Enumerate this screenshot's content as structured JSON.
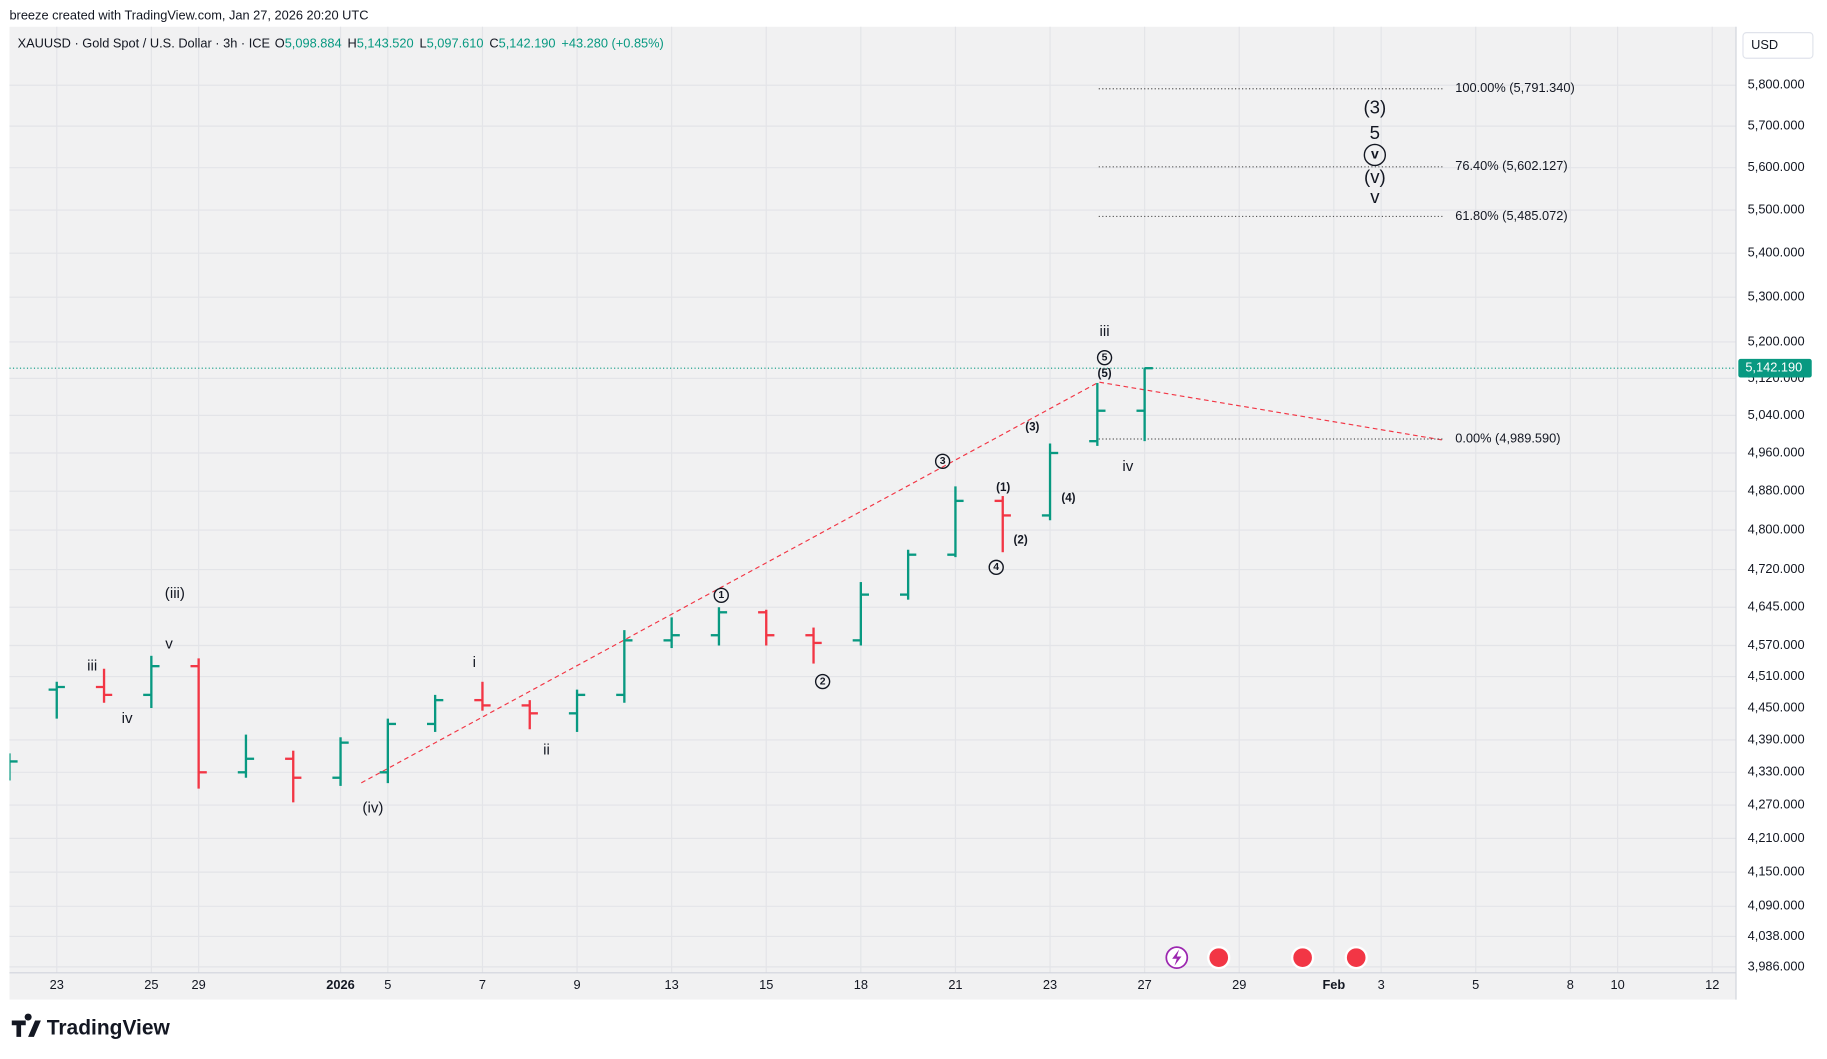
{
  "header": {
    "credit": "breeze created with TradingView.com, Jan 27, 2026 20:20 UTC",
    "brand": "TradingView"
  },
  "chart_data": {
    "type": "ohlc",
    "symbol": "XAUUSD · Gold Spot / U.S. Dollar · 3h · ICE",
    "ohlc_legend": [
      {
        "label": "O",
        "value": "5,098.884"
      },
      {
        "label": "H",
        "value": "5,143.520"
      },
      {
        "label": "L",
        "value": "5,097.610"
      },
      {
        "label": "C",
        "value": "5,142.190"
      }
    ],
    "change": "+43.280 (+0.85%)",
    "currency": "USD",
    "categories": [
      null,
      "23",
      null,
      "25",
      "29",
      null,
      null,
      "2026",
      "5",
      null,
      "7",
      null,
      "9",
      null,
      "13",
      null,
      "15",
      null,
      "18",
      null,
      "21",
      null,
      "23",
      null,
      "27",
      null,
      "29",
      null,
      "Feb",
      "3",
      null,
      "5",
      null,
      "8",
      "10",
      null,
      "12"
    ],
    "open": [
      4318,
      4485,
      4490,
      4475,
      4530,
      4330,
      4355,
      4320,
      4330,
      4420,
      4465,
      4455,
      4440,
      4475,
      4580,
      4590,
      4635,
      4590,
      4580,
      4670,
      4750,
      4860,
      4830,
      4985,
      5050,
      null,
      null,
      null,
      null,
      null,
      null,
      null,
      null,
      null,
      null,
      null,
      null
    ],
    "high": [
      4365,
      4500,
      4525,
      4550,
      4545,
      4400,
      4370,
      4395,
      4430,
      4475,
      4500,
      4465,
      4485,
      4600,
      4625,
      4645,
      4640,
      4605,
      4695,
      4760,
      4890,
      4870,
      4980,
      5110,
      5143.52,
      null,
      null,
      null,
      null,
      null,
      null,
      null,
      null,
      null,
      null,
      null,
      null
    ],
    "low": [
      4315,
      4430,
      4460,
      4450,
      4300,
      4320,
      4275,
      4305,
      4310,
      4405,
      4445,
      4410,
      4405,
      4460,
      4565,
      4570,
      4570,
      4535,
      4570,
      4660,
      4745,
      4755,
      4820,
      4975,
      4985,
      null,
      null,
      null,
      null,
      null,
      null,
      null,
      null,
      null,
      null,
      null,
      null
    ],
    "close": [
      4350,
      4490,
      4475,
      4530,
      4330,
      4355,
      4320,
      4385,
      4420,
      4465,
      4455,
      4440,
      4475,
      4580,
      4590,
      4635,
      4590,
      4575,
      4670,
      4750,
      4860,
      4830,
      4960,
      5050,
      5142.19,
      null,
      null,
      null,
      null,
      null,
      null,
      null,
      null,
      null,
      null,
      null,
      null
    ],
    "up_color": "#089981",
    "down_color": "#f23645",
    "log": true,
    "grid": true,
    "ylim": [
      3976,
      5946
    ],
    "yticks": [
      {
        "value": 3986,
        "label": "3,986.000"
      },
      {
        "value": 4038,
        "label": "4,038.000"
      },
      {
        "value": 4090,
        "label": "4,090.000"
      },
      {
        "value": 4150,
        "label": "4,150.000"
      },
      {
        "value": 4210,
        "label": "4,210.000"
      },
      {
        "value": 4270,
        "label": "4,270.000"
      },
      {
        "value": 4330,
        "label": "4,330.000"
      },
      {
        "value": 4390,
        "label": "4,390.000"
      },
      {
        "value": 4450,
        "label": "4,450.000"
      },
      {
        "value": 4510,
        "label": "4,510.000"
      },
      {
        "value": 4570,
        "label": "4,570.000"
      },
      {
        "value": 4645,
        "label": "4,645.000"
      },
      {
        "value": 4720,
        "label": "4,720.000"
      },
      {
        "value": 4800,
        "label": "4,800.000"
      },
      {
        "value": 4880,
        "label": "4,880.000"
      },
      {
        "value": 4960,
        "label": "4,960.000"
      },
      {
        "value": 5040,
        "label": "5,040.000"
      },
      {
        "value": 5120,
        "label": "5,120.000"
      },
      {
        "value": 5200,
        "label": "5,200.000"
      },
      {
        "value": 5300,
        "label": "5,300.000"
      },
      {
        "value": 5400,
        "label": "5,400.000"
      },
      {
        "value": 5500,
        "label": "5,500.000"
      },
      {
        "value": 5600,
        "label": "5,600.000"
      },
      {
        "value": 5700,
        "label": "5,700.000"
      },
      {
        "value": 5800,
        "label": "5,800.000"
      }
    ],
    "last_price": {
      "value": 5142.19,
      "label": "5,142.190"
    },
    "fib_levels": [
      {
        "value": 5791.34,
        "label": "100.00% (5,791.340)"
      },
      {
        "value": 5602.127,
        "label": "76.40% (5,602.127)"
      },
      {
        "value": 5485.072,
        "label": "61.80% (5,485.072)"
      },
      {
        "value": 4989.59,
        "label": "0.00% (4,989.590)"
      }
    ],
    "annotations": [
      {
        "text": "(iii)"
      },
      {
        "text": "v"
      },
      {
        "text": "iii"
      },
      {
        "text": "iv"
      },
      {
        "text": "(iv)"
      },
      {
        "text": "i"
      },
      {
        "text": "ii"
      },
      {
        "text": "1",
        "circled": true
      },
      {
        "text": "2",
        "circled": true
      },
      {
        "text": "3",
        "circled": true
      },
      {
        "text": "4",
        "circled": true
      },
      {
        "text": "5",
        "circled": true
      },
      {
        "text": "(1)"
      },
      {
        "text": "(2)"
      },
      {
        "text": "(3)"
      },
      {
        "text": "(4)"
      },
      {
        "text": "(5)"
      },
      {
        "text": "iii"
      },
      {
        "text": "iv"
      },
      {
        "text": "(3)"
      },
      {
        "text": "5"
      },
      {
        "text": "v",
        "circled": true
      },
      {
        "text": "(v)"
      },
      {
        "text": "v"
      }
    ]
  }
}
